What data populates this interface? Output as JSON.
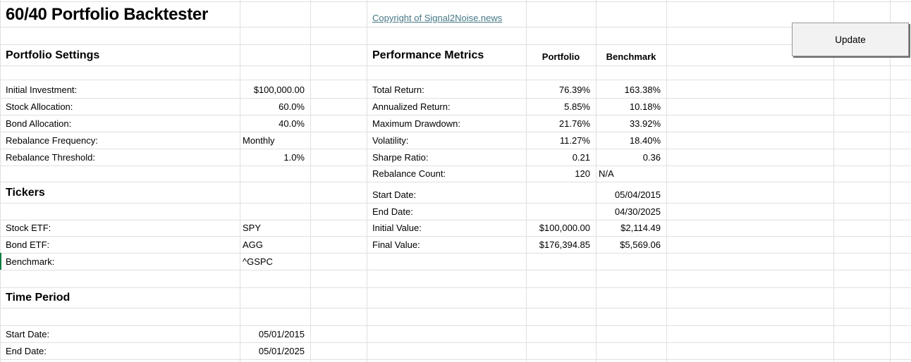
{
  "app": {
    "title": "60/40 Portfolio Backtester",
    "copyright_link": "Copyright of Signal2Noise.news"
  },
  "update_button": {
    "label": "Update"
  },
  "portfolio_settings": {
    "heading": "Portfolio Settings",
    "rows": [
      {
        "label": "Initial Investment:",
        "value": "$100,000.00"
      },
      {
        "label": "Stock Allocation:",
        "value": "60.0%"
      },
      {
        "label": "Bond Allocation:",
        "value": "40.0%"
      },
      {
        "label": "Rebalance Frequency:",
        "value": "Monthly"
      },
      {
        "label": "Rebalance Threshold:",
        "value": "1.0%"
      }
    ]
  },
  "tickers": {
    "heading": "Tickers",
    "rows": [
      {
        "label": "Stock ETF:",
        "value": "SPY"
      },
      {
        "label": "Bond ETF:",
        "value": "AGG"
      },
      {
        "label": "Benchmark:",
        "value": "^GSPC"
      }
    ]
  },
  "time_period": {
    "heading": "Time Period",
    "rows": [
      {
        "label": "Start Date:",
        "value": "05/01/2015"
      },
      {
        "label": "End Date:",
        "value": "05/01/2025"
      }
    ]
  },
  "performance_metrics": {
    "heading": "Performance Metrics",
    "columns": {
      "portfolio": "Portfolio",
      "benchmark": "Benchmark"
    },
    "rows": [
      {
        "label": "Total Return:",
        "portfolio": "76.39%",
        "benchmark": "163.38%"
      },
      {
        "label": "Annualized Return:",
        "portfolio": "5.85%",
        "benchmark": "10.18%"
      },
      {
        "label": "Maximum Drawdown:",
        "portfolio": "21.76%",
        "benchmark": "33.92%"
      },
      {
        "label": "Volatility:",
        "portfolio": "11.27%",
        "benchmark": "18.40%"
      },
      {
        "label": "Sharpe Ratio:",
        "portfolio": "0.21",
        "benchmark": "0.36"
      },
      {
        "label": "Rebalance Count:",
        "portfolio": "120",
        "benchmark": "N/A"
      },
      {
        "label": "Start Date:",
        "portfolio": "",
        "benchmark": "05/04/2015"
      },
      {
        "label": "End Date:",
        "portfolio": "",
        "benchmark": "04/30/2025"
      },
      {
        "label": "Initial Value:",
        "portfolio": "$100,000.00",
        "benchmark": "$2,114.49"
      },
      {
        "label": "Final Value:",
        "portfolio": "$176,394.85",
        "benchmark": "$5,569.06"
      }
    ]
  },
  "colors": {
    "hyperlink": "#467886",
    "selection_green": "#107C41",
    "gridline": "#e0e0e0",
    "button_face": "#f2f2f2",
    "button_border": "#979797",
    "button_shadow": "#6e6e6e",
    "text": "#000000",
    "background": "#ffffff"
  }
}
